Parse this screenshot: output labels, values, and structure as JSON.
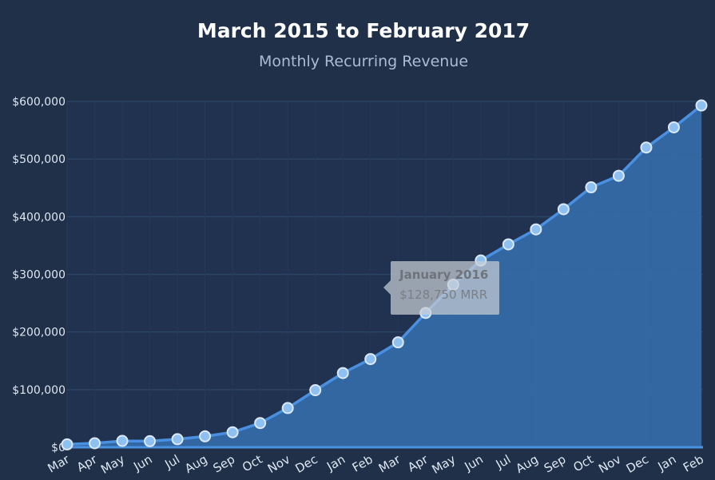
{
  "chart_data": {
    "type": "area",
    "title": "March 2015 to February 2017",
    "subtitle": "Monthly Recurring Revenue",
    "xlabel": "",
    "ylabel": "",
    "categories": [
      "Mar",
      "Apr",
      "May",
      "Jun",
      "Jul",
      "Aug",
      "Sep",
      "Oct",
      "Nov",
      "Dec",
      "Jan",
      "Feb",
      "Mar",
      "Apr",
      "May",
      "Jun",
      "Jul",
      "Aug",
      "Sep",
      "Oct",
      "Nov",
      "Dec",
      "Jan",
      "Feb"
    ],
    "series": [
      {
        "values": [
          5000,
          7000,
          11000,
          10500,
          14000,
          19000,
          26000,
          42000,
          68000,
          99000,
          128750,
          153000,
          182000,
          233000,
          282000,
          324000,
          352000,
          378000,
          413000,
          451000,
          471000,
          520000,
          555000,
          593000
        ]
      }
    ],
    "ylim": [
      0,
      600000
    ],
    "yticks": [
      "$0",
      "$100,000",
      "$200,000",
      "$300,000",
      "$400,000",
      "$500,000",
      "$600,000"
    ],
    "grid": true,
    "colors": {
      "background": "#1f3048",
      "plot_background": "#203250",
      "line": "#4a90e2",
      "area": "#356aa6",
      "point_fill": "#8fc0f2",
      "point_stroke": "#dbe9f8"
    },
    "tooltip": {
      "title": "January 2016",
      "value": "$128,750 MRR"
    }
  }
}
